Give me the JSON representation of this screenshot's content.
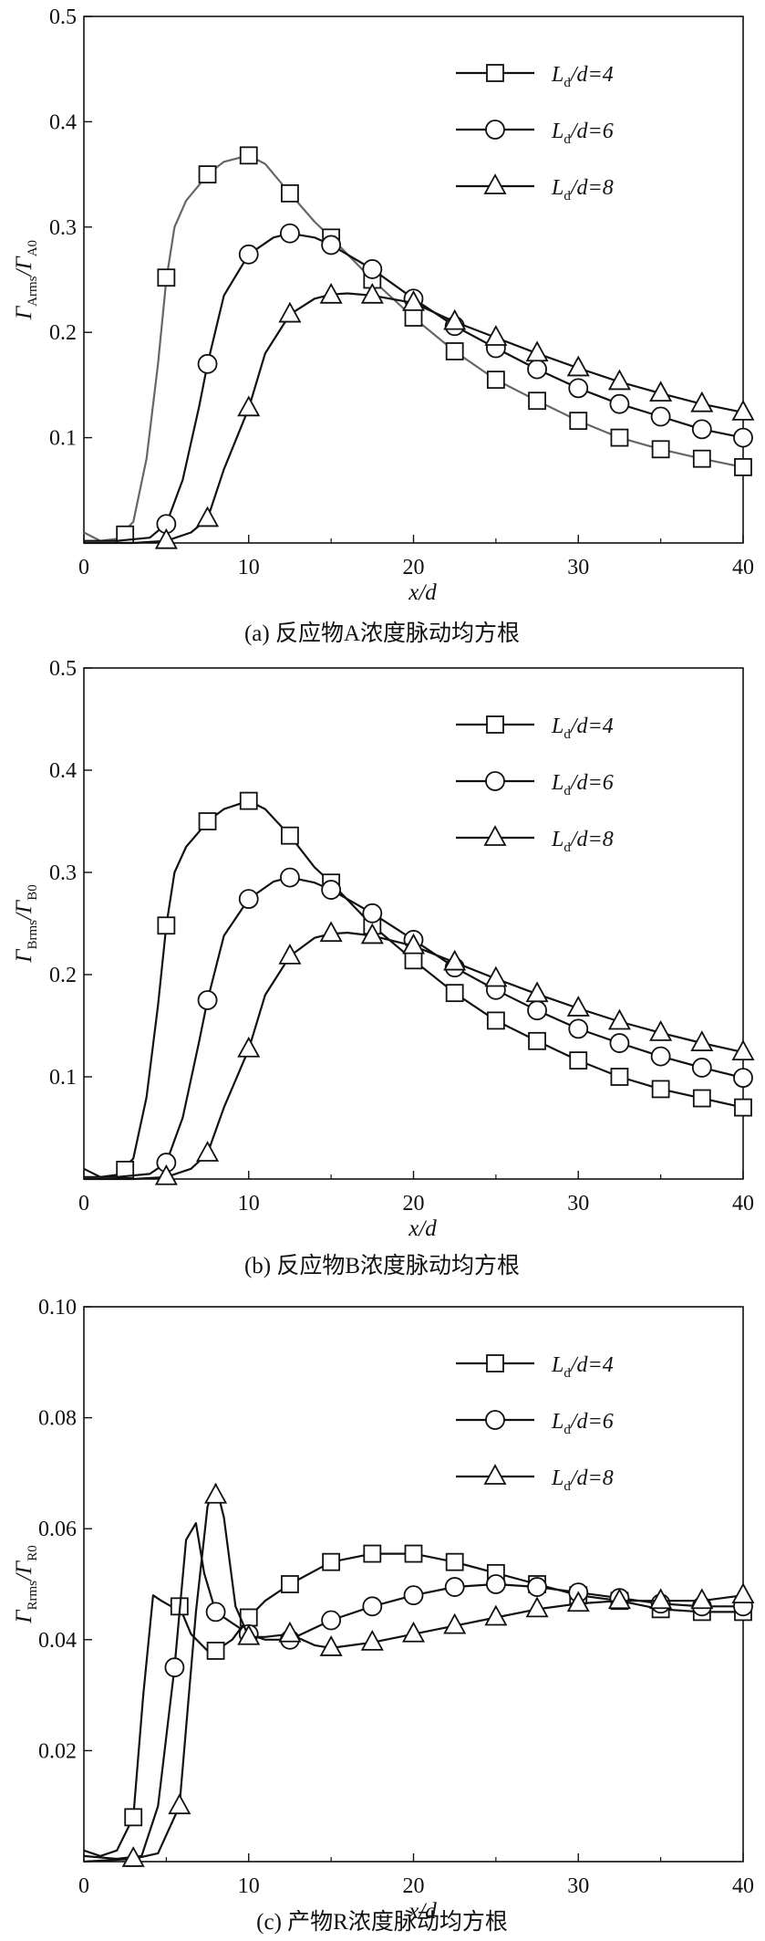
{
  "chart_data": [
    {
      "type": "line",
      "caption": "(a) 反应物A浓度脉动均方根",
      "xlabel": "x/d",
      "ylabel": {
        "main": "Γ",
        "sub": "Arms",
        "slash": "/Γ",
        "sub2": "A0"
      },
      "xlim": [
        0,
        40
      ],
      "ylim": [
        0,
        0.5
      ],
      "xticks": [
        "0",
        "10",
        "20",
        "30",
        "40"
      ],
      "yticks": [
        "0.1",
        "0.2",
        "0.3",
        "0.4",
        "0.5"
      ],
      "yticks_values": [
        0.1,
        0.2,
        0.3,
        0.4,
        0.5
      ],
      "legend_position": "top-right",
      "grid": false,
      "series": [
        {
          "name": "Ld/d=4",
          "legend": {
            "pre": "L",
            "sub": "d",
            "post": "/d=4"
          },
          "marker": "square",
          "color": "#666666",
          "markers_x": [
            2.5,
            5,
            7.5,
            10,
            12.5,
            15,
            17.5,
            20,
            22.5,
            25,
            27.5,
            30,
            32.5,
            35,
            37.5,
            40
          ],
          "markers_y": [
            0.008,
            0.252,
            0.35,
            0.368,
            0.332,
            0.29,
            0.25,
            0.214,
            0.182,
            0.155,
            0.135,
            0.116,
            0.1,
            0.089,
            0.08,
            0.072
          ],
          "curve_x": [
            0,
            1,
            2,
            3,
            3.8,
            4.5,
            5,
            5.5,
            6.2,
            7,
            7.5,
            8.5,
            10,
            11,
            12.5,
            14,
            15,
            17.5,
            20,
            22.5,
            25,
            27.5,
            30,
            32.5,
            35,
            37.5,
            40
          ],
          "curve_y": [
            0.01,
            0.002,
            0.004,
            0.02,
            0.08,
            0.17,
            0.25,
            0.3,
            0.325,
            0.34,
            0.35,
            0.362,
            0.368,
            0.36,
            0.332,
            0.305,
            0.29,
            0.25,
            0.214,
            0.182,
            0.155,
            0.135,
            0.116,
            0.1,
            0.089,
            0.08,
            0.072
          ]
        },
        {
          "name": "Ld/d=6",
          "legend": {
            "pre": "L",
            "sub": "d",
            "post": "/d=6"
          },
          "marker": "circle",
          "color": "#111111",
          "markers_x": [
            5,
            7.5,
            10,
            12.5,
            15,
            17.5,
            20,
            22.5,
            25,
            27.5,
            30,
            32.5,
            35,
            37.5,
            40
          ],
          "markers_y": [
            0.018,
            0.17,
            0.274,
            0.294,
            0.283,
            0.26,
            0.232,
            0.206,
            0.185,
            0.165,
            0.147,
            0.132,
            0.12,
            0.108,
            0.1
          ],
          "curve_x": [
            0,
            2,
            4,
            5,
            6,
            7,
            7.5,
            8.5,
            10,
            11.5,
            12.5,
            14,
            15,
            17.5,
            20,
            22.5,
            25,
            27.5,
            30,
            32.5,
            35,
            37.5,
            40
          ],
          "curve_y": [
            0.002,
            0.002,
            0.005,
            0.018,
            0.06,
            0.13,
            0.17,
            0.235,
            0.274,
            0.29,
            0.294,
            0.29,
            0.283,
            0.26,
            0.232,
            0.206,
            0.185,
            0.165,
            0.147,
            0.132,
            0.12,
            0.108,
            0.1
          ]
        },
        {
          "name": "Ld/d=8",
          "legend": {
            "pre": "L",
            "sub": "d",
            "post": "/d=8"
          },
          "marker": "triangle",
          "color": "#111111",
          "markers_x": [
            5,
            7.5,
            10,
            12.5,
            15,
            17.5,
            20,
            22.5,
            25,
            27.5,
            30,
            32.5,
            35,
            37.5,
            40
          ],
          "markers_y": [
            0.002,
            0.023,
            0.128,
            0.217,
            0.235,
            0.235,
            0.228,
            0.21,
            0.195,
            0.18,
            0.166,
            0.153,
            0.142,
            0.132,
            0.124
          ],
          "curve_x": [
            0,
            3,
            5,
            6.5,
            7.5,
            8.5,
            10,
            11,
            12.5,
            14,
            15,
            16,
            17.5,
            20,
            22.5,
            25,
            27.5,
            30,
            32.5,
            35,
            37.5,
            40
          ],
          "curve_y": [
            0.0,
            0.0,
            0.002,
            0.01,
            0.023,
            0.07,
            0.128,
            0.18,
            0.217,
            0.232,
            0.236,
            0.237,
            0.235,
            0.228,
            0.21,
            0.195,
            0.18,
            0.166,
            0.153,
            0.142,
            0.132,
            0.124
          ]
        }
      ]
    },
    {
      "type": "line",
      "caption": "(b) 反应物B浓度脉动均方根",
      "xlabel": "x/d",
      "ylabel": {
        "main": "Γ",
        "sub": "Brms",
        "slash": "/Γ",
        "sub2": "B0"
      },
      "xlim": [
        0,
        40
      ],
      "ylim": [
        0,
        0.5
      ],
      "xticks": [
        "0",
        "10",
        "20",
        "30",
        "40"
      ],
      "yticks": [
        "0.1",
        "0.2",
        "0.3",
        "0.4",
        "0.5"
      ],
      "yticks_values": [
        0.1,
        0.2,
        0.3,
        0.4,
        0.5
      ],
      "legend_position": "top-right",
      "grid": false,
      "series": [
        {
          "name": "Ld/d=4",
          "legend": {
            "pre": "L",
            "sub": "d",
            "post": "/d=4"
          },
          "marker": "square",
          "color": "#111111",
          "markers_x": [
            2.5,
            5,
            7.5,
            10,
            12.5,
            15,
            17.5,
            20,
            22.5,
            25,
            27.5,
            30,
            32.5,
            35,
            37.5,
            40
          ],
          "markers_y": [
            0.009,
            0.248,
            0.35,
            0.37,
            0.336,
            0.29,
            0.248,
            0.214,
            0.182,
            0.155,
            0.135,
            0.116,
            0.1,
            0.088,
            0.079,
            0.07
          ],
          "curve_x": [
            0,
            1,
            2,
            3,
            3.8,
            4.5,
            5,
            5.5,
            6.2,
            7,
            7.5,
            8.5,
            10,
            11,
            12.5,
            14,
            15,
            17.5,
            20,
            22.5,
            25,
            27.5,
            30,
            32.5,
            35,
            37.5,
            40
          ],
          "curve_y": [
            0.01,
            0.002,
            0.004,
            0.02,
            0.08,
            0.17,
            0.248,
            0.3,
            0.325,
            0.34,
            0.35,
            0.362,
            0.37,
            0.362,
            0.336,
            0.305,
            0.29,
            0.248,
            0.214,
            0.182,
            0.155,
            0.135,
            0.116,
            0.1,
            0.088,
            0.079,
            0.07
          ]
        },
        {
          "name": "Ld/d=6",
          "legend": {
            "pre": "L",
            "sub": "d",
            "post": "/d=6"
          },
          "marker": "circle",
          "color": "#111111",
          "markers_x": [
            5,
            7.5,
            10,
            12.5,
            15,
            17.5,
            20,
            22.5,
            25,
            27.5,
            30,
            32.5,
            35,
            37.5,
            40
          ],
          "markers_y": [
            0.016,
            0.175,
            0.274,
            0.295,
            0.283,
            0.26,
            0.234,
            0.207,
            0.185,
            0.165,
            0.147,
            0.133,
            0.12,
            0.109,
            0.099
          ],
          "curve_x": [
            0,
            2,
            4,
            5,
            6,
            7,
            7.5,
            8.5,
            10,
            11.5,
            12.5,
            14,
            15,
            17.5,
            20,
            22.5,
            25,
            27.5,
            30,
            32.5,
            35,
            37.5,
            40
          ],
          "curve_y": [
            0.002,
            0.002,
            0.005,
            0.016,
            0.06,
            0.135,
            0.175,
            0.238,
            0.274,
            0.291,
            0.295,
            0.29,
            0.283,
            0.26,
            0.234,
            0.207,
            0.185,
            0.165,
            0.147,
            0.133,
            0.12,
            0.109,
            0.099
          ]
        },
        {
          "name": "Ld/d=8",
          "legend": {
            "pre": "L",
            "sub": "d",
            "post": "/d=8"
          },
          "marker": "triangle",
          "color": "#111111",
          "markers_x": [
            5,
            7.5,
            10,
            12.5,
            15,
            17.5,
            20,
            22.5,
            25,
            27.5,
            30,
            32.5,
            35,
            37.5,
            40
          ],
          "markers_y": [
            0.002,
            0.025,
            0.127,
            0.218,
            0.24,
            0.238,
            0.228,
            0.212,
            0.196,
            0.181,
            0.167,
            0.154,
            0.143,
            0.133,
            0.124
          ],
          "curve_x": [
            0,
            3,
            5,
            6.5,
            7.5,
            8.5,
            10,
            11,
            12.5,
            14,
            15,
            16,
            17.5,
            20,
            22.5,
            25,
            27.5,
            30,
            32.5,
            35,
            37.5,
            40
          ],
          "curve_y": [
            0.0,
            0.0,
            0.002,
            0.01,
            0.025,
            0.07,
            0.127,
            0.18,
            0.218,
            0.236,
            0.24,
            0.241,
            0.238,
            0.228,
            0.212,
            0.196,
            0.181,
            0.167,
            0.154,
            0.143,
            0.133,
            0.124
          ]
        }
      ]
    },
    {
      "type": "line",
      "caption": "(c) 产物R浓度脉动均方根",
      "xlabel": "x/d",
      "ylabel": {
        "main": "Γ",
        "sub": "Rrms",
        "slash": "/Γ",
        "sub2": "R0"
      },
      "xlim": [
        0,
        40
      ],
      "ylim": [
        0,
        0.1
      ],
      "xticks": [
        "0",
        "10",
        "20",
        "30",
        "40"
      ],
      "yticks": [
        "0.02",
        "0.04",
        "0.06",
        "0.08",
        "0.10"
      ],
      "yticks_values": [
        0.02,
        0.04,
        0.06,
        0.08,
        0.1
      ],
      "legend_position": "top-right",
      "grid": false,
      "series": [
        {
          "name": "Ld/d=4",
          "legend": {
            "pre": "L",
            "sub": "d",
            "post": "/d=4"
          },
          "marker": "square",
          "color": "#111111",
          "markers_x": [
            3,
            5.8,
            8,
            10,
            12.5,
            15,
            17.5,
            20,
            22.5,
            25,
            27.5,
            30,
            32.5,
            35,
            37.5,
            40
          ],
          "markers_y": [
            0.008,
            0.046,
            0.038,
            0.044,
            0.05,
            0.054,
            0.0555,
            0.0555,
            0.054,
            0.052,
            0.05,
            0.048,
            0.047,
            0.0455,
            0.045,
            0.045
          ],
          "curve_x": [
            0,
            1,
            2,
            3,
            3.6,
            4.2,
            4.7,
            5.3,
            5.8,
            6.5,
            7.5,
            8,
            9,
            10,
            11,
            12.5,
            15,
            17.5,
            20,
            22.5,
            25,
            27.5,
            30,
            32.5,
            35,
            37.5,
            40
          ],
          "curve_y": [
            0.002,
            0.001,
            0.002,
            0.008,
            0.03,
            0.048,
            0.047,
            0.046,
            0.046,
            0.041,
            0.038,
            0.038,
            0.04,
            0.044,
            0.047,
            0.05,
            0.054,
            0.0555,
            0.0555,
            0.054,
            0.052,
            0.05,
            0.048,
            0.047,
            0.0455,
            0.045,
            0.045
          ]
        },
        {
          "name": "Ld/d=6",
          "legend": {
            "pre": "L",
            "sub": "d",
            "post": "/d=6"
          },
          "marker": "circle",
          "color": "#111111",
          "markers_x": [
            5.5,
            8,
            10,
            12.5,
            15,
            17.5,
            20,
            22.5,
            25,
            27.5,
            30,
            32.5,
            35,
            37.5,
            40
          ],
          "markers_y": [
            0.035,
            0.045,
            0.041,
            0.04,
            0.0435,
            0.046,
            0.048,
            0.0495,
            0.05,
            0.0495,
            0.0485,
            0.0475,
            0.0465,
            0.046,
            0.046
          ],
          "curve_x": [
            0,
            2,
            3.5,
            4.5,
            5.5,
            6.2,
            6.8,
            7.3,
            8,
            9,
            10,
            11,
            12.5,
            15,
            17.5,
            20,
            22.5,
            25,
            27.5,
            30,
            32.5,
            35,
            37.5,
            40
          ],
          "curve_y": [
            0.001,
            0.0005,
            0.001,
            0.01,
            0.035,
            0.058,
            0.061,
            0.052,
            0.045,
            0.043,
            0.041,
            0.04,
            0.04,
            0.0435,
            0.046,
            0.048,
            0.0495,
            0.05,
            0.0495,
            0.0485,
            0.0475,
            0.0465,
            0.046,
            0.046
          ]
        },
        {
          "name": "Ld/d=8",
          "legend": {
            "pre": "L",
            "sub": "d",
            "post": "/d=8"
          },
          "marker": "triangle",
          "color": "#111111",
          "markers_x": [
            3,
            5.8,
            8,
            10,
            12.5,
            15,
            17.5,
            20,
            22.5,
            25,
            27.5,
            30,
            32.5,
            35,
            37.5,
            40
          ],
          "markers_y": [
            0.0005,
            0.01,
            0.066,
            0.0405,
            0.041,
            0.0385,
            0.0395,
            0.041,
            0.0425,
            0.044,
            0.0455,
            0.0465,
            0.047,
            0.047,
            0.047,
            0.048
          ],
          "curve_x": [
            0,
            3,
            4.5,
            5.8,
            6.8,
            7.5,
            8,
            8.5,
            9.2,
            10,
            11,
            12.5,
            14,
            15,
            17.5,
            20,
            22.5,
            25,
            27.5,
            30,
            32.5,
            35,
            37.5,
            40
          ],
          "curve_y": [
            0.0,
            0.0005,
            0.0015,
            0.01,
            0.045,
            0.064,
            0.068,
            0.062,
            0.046,
            0.0405,
            0.0405,
            0.041,
            0.039,
            0.0385,
            0.0395,
            0.041,
            0.0425,
            0.044,
            0.0455,
            0.0465,
            0.047,
            0.047,
            0.047,
            0.048
          ]
        }
      ]
    }
  ]
}
